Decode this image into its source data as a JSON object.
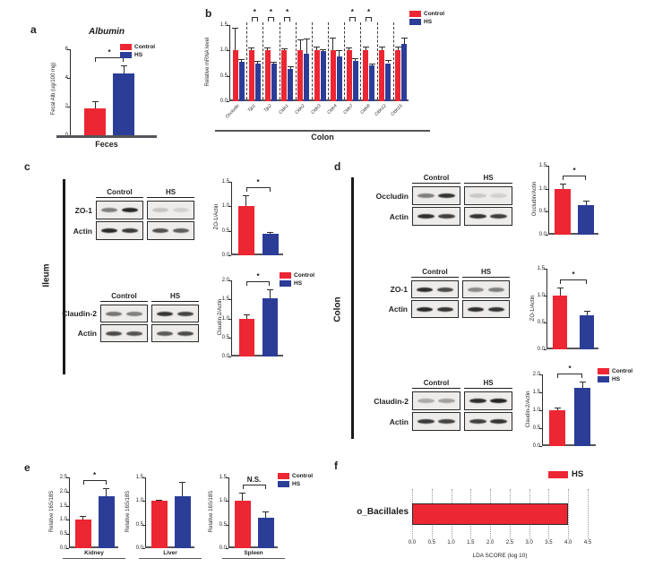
{
  "colors": {
    "control": "#ed2633",
    "hs": "#2c3d98",
    "lefse": "#ed2633",
    "axis": "#55565a"
  },
  "legend_labels": {
    "control": "Control",
    "hs": "HS"
  },
  "panels": {
    "a": {
      "label": "a"
    },
    "b": {
      "label": "b"
    },
    "c": {
      "label": "c",
      "tissue": "Ileum",
      "blots": [
        {
          "headers": [
            "Control",
            "HS"
          ],
          "rows": [
            {
              "label": "ZO-1",
              "lanes": [
                [
                  0.5,
                  0.9
                ],
                [
                  0.18,
                  0.12
                ]
              ]
            },
            {
              "label": "Actin",
              "lanes": [
                [
                  0.9,
                  0.82
                ],
                [
                  0.72,
                  0.66
                ]
              ]
            }
          ]
        },
        {
          "headers": [
            "Control",
            "HS"
          ],
          "rows": [
            {
              "label": "Claudin-2",
              "lanes": [
                [
                  0.55,
                  0.5
                ],
                [
                  0.85,
                  0.78
                ]
              ]
            },
            {
              "label": "Actin",
              "lanes": [
                [
                  0.75,
                  0.7
                ],
                [
                  0.68,
                  0.74
                ]
              ]
            }
          ]
        }
      ]
    },
    "d": {
      "label": "d",
      "tissue": "Colon",
      "blots": [
        {
          "headers": [
            "Control",
            "HS"
          ],
          "rows": [
            {
              "label": "Occludin",
              "lanes": [
                [
                  0.5,
                  0.85
                ],
                [
                  0.16,
                  0.12
                ]
              ]
            },
            {
              "label": "Actin",
              "lanes": [
                [
                  0.88,
                  0.8
                ],
                [
                  0.85,
                  0.8
                ]
              ]
            }
          ]
        },
        {
          "headers": [
            "Control",
            "HS"
          ],
          "rows": [
            {
              "label": "ZO-1",
              "lanes": [
                [
                  0.88,
                  0.75
                ],
                [
                  0.45,
                  0.5
                ]
              ]
            },
            {
              "label": "Actin",
              "lanes": [
                [
                  0.9,
                  0.85
                ],
                [
                  0.88,
                  0.85
                ]
              ]
            }
          ]
        },
        {
          "headers": [
            "Control",
            "HS"
          ],
          "rows": [
            {
              "label": "Claudin-2",
              "lanes": [
                [
                  0.3,
                  0.35
                ],
                [
                  0.88,
                  0.92
                ]
              ]
            },
            {
              "label": "Actin",
              "lanes": [
                [
                  0.82,
                  0.78
                ],
                [
                  0.8,
                  0.85
                ]
              ]
            }
          ]
        }
      ]
    },
    "e": {
      "label": "e"
    },
    "f": {
      "label": "f",
      "legend": "HS"
    }
  },
  "chart_data": [
    {
      "type": "bar",
      "title": "Albumin",
      "xlabel": "Feces",
      "ylabel": "Fecal Alb (ug/100 mg)",
      "ylim": [
        0,
        6
      ],
      "yticks": [
        "0",
        "2",
        "4",
        "6"
      ],
      "categories": [
        "Feces"
      ],
      "series": [
        {
          "name": "Control",
          "color": "control",
          "values": [
            1.9
          ],
          "errors": [
            0.5
          ]
        },
        {
          "name": "HS",
          "color": "hs",
          "values": [
            4.3
          ],
          "errors": [
            0.6
          ]
        }
      ],
      "sig": [
        {
          "group": 0,
          "label": "*"
        }
      ]
    },
    {
      "type": "bar",
      "xlabel": "Colon",
      "ylabel": "Relative mRNA level",
      "ylim": [
        0,
        1.5
      ],
      "yticks": [
        "0.0",
        "0.5",
        "1.0",
        "1.5"
      ],
      "categories": [
        "Occludin",
        "Tjp1",
        "Tjp2",
        "Cldn1",
        "Cldn2",
        "Cldn3",
        "Cldn4",
        "Cldn7",
        "Cldn8",
        "Cldn12",
        "Cldn15"
      ],
      "series": [
        {
          "name": "Control",
          "color": "control",
          "values": [
            1,
            1,
            1,
            1,
            1,
            1,
            1,
            1,
            1,
            1,
            1
          ],
          "errors": [
            0.45,
            0.06,
            0.06,
            0.05,
            0.22,
            0.07,
            0.25,
            0.06,
            0.08,
            0.07,
            0.07
          ]
        },
        {
          "name": "HS",
          "color": "hs",
          "values": [
            0.78,
            0.74,
            0.74,
            0.64,
            0.93,
            0.99,
            0.88,
            0.79,
            0.7,
            0.75,
            1.13
          ],
          "errors": [
            0.05,
            0.05,
            0.04,
            0.05,
            0.3,
            0.04,
            0.12,
            0.05,
            0.05,
            0.06,
            0.12
          ]
        }
      ],
      "sig": [
        {
          "group": 1,
          "label": "*"
        },
        {
          "group": 2,
          "label": "*"
        },
        {
          "group": 3,
          "label": "*"
        },
        {
          "group": 7,
          "label": "*"
        },
        {
          "group": 8,
          "label": "*"
        }
      ]
    },
    {
      "type": "bar",
      "ylabel": "ZO-1/Actin",
      "ylim": [
        0,
        1.5
      ],
      "yticks": [
        "0.0",
        "0.5",
        "1.0",
        "1.5"
      ],
      "categories": [
        "Ileum"
      ],
      "series": [
        {
          "name": "Control",
          "color": "control",
          "values": [
            1.0
          ],
          "errors": [
            0.22
          ]
        },
        {
          "name": "HS",
          "color": "hs",
          "values": [
            0.43
          ],
          "errors": [
            0.05
          ]
        }
      ],
      "sig": [
        {
          "group": 0,
          "label": "*"
        }
      ]
    },
    {
      "type": "bar",
      "ylabel": "Claudin-2/Actin",
      "ylim": [
        0,
        2
      ],
      "yticks": [
        "0.0",
        "0.5",
        "1.0",
        "1.5",
        "2.0"
      ],
      "categories": [
        "Ileum"
      ],
      "series": [
        {
          "name": "Control",
          "color": "control",
          "values": [
            1.0
          ],
          "errors": [
            0.1
          ]
        },
        {
          "name": "HS",
          "color": "hs",
          "values": [
            1.52
          ],
          "errors": [
            0.25
          ]
        }
      ],
      "sig": [
        {
          "group": 0,
          "label": "*"
        }
      ]
    },
    {
      "type": "bar",
      "ylabel": "Occludin/Actin",
      "ylim": [
        0,
        1.5
      ],
      "yticks": [
        "0.0",
        "0.5",
        "1.0",
        "1.5"
      ],
      "categories": [
        "Colon"
      ],
      "series": [
        {
          "name": "Control",
          "color": "control",
          "values": [
            1.0
          ],
          "errors": [
            0.12
          ]
        },
        {
          "name": "HS",
          "color": "hs",
          "values": [
            0.65
          ],
          "errors": [
            0.1
          ]
        }
      ],
      "sig": [
        {
          "group": 0,
          "label": "*"
        }
      ]
    },
    {
      "type": "bar",
      "ylabel": "ZO-1/Actin",
      "ylim": [
        0,
        1.5
      ],
      "yticks": [
        "0.0",
        "0.5",
        "1.0",
        "1.5"
      ],
      "categories": [
        "Colon"
      ],
      "series": [
        {
          "name": "Control",
          "color": "control",
          "values": [
            1.0
          ],
          "errors": [
            0.15
          ]
        },
        {
          "name": "HS",
          "color": "hs",
          "values": [
            0.63
          ],
          "errors": [
            0.08
          ]
        }
      ],
      "sig": [
        {
          "group": 0,
          "label": "*"
        }
      ]
    },
    {
      "type": "bar",
      "ylabel": "Claudin-2/Actin",
      "ylim": [
        0,
        2
      ],
      "yticks": [
        "0.0",
        "0.5",
        "1.0",
        "1.5",
        "2.0"
      ],
      "categories": [
        "Colon"
      ],
      "series": [
        {
          "name": "Control",
          "color": "control",
          "values": [
            1.0
          ],
          "errors": [
            0.07
          ]
        },
        {
          "name": "HS",
          "color": "hs",
          "values": [
            1.63
          ],
          "errors": [
            0.18
          ]
        }
      ],
      "sig": [
        {
          "group": 0,
          "label": "*"
        }
      ]
    },
    {
      "type": "bar",
      "xlabel": "Kidney",
      "ylabel": "Relative 16S/18S",
      "ylim": [
        0,
        2.5
      ],
      "yticks": [
        "0.0",
        "0.5",
        "1.0",
        "1.5",
        "2.0",
        "2.5"
      ],
      "categories": [
        "Kidney"
      ],
      "series": [
        {
          "name": "Control",
          "color": "control",
          "values": [
            1.0
          ],
          "errors": [
            0.15
          ]
        },
        {
          "name": "HS",
          "color": "hs",
          "values": [
            1.85
          ],
          "errors": [
            0.27
          ]
        }
      ],
      "sig": [
        {
          "group": 0,
          "label": "*"
        }
      ]
    },
    {
      "type": "bar",
      "xlabel": "Liver",
      "ylabel": "Relative 16S/18S",
      "ylim": [
        0,
        1.5
      ],
      "yticks": [
        "0.0",
        "0.5",
        "1.0",
        "1.5"
      ],
      "categories": [
        "Liver"
      ],
      "series": [
        {
          "name": "Control",
          "color": "control",
          "values": [
            1.0
          ],
          "errors": [
            0.03
          ]
        },
        {
          "name": "HS",
          "color": "hs",
          "values": [
            1.1
          ],
          "errors": [
            0.3
          ]
        }
      ]
    },
    {
      "type": "bar",
      "xlabel": "Spleen",
      "ylabel": "Relative 16S/18S",
      "ylim": [
        0,
        1.5
      ],
      "yticks": [
        "0.0",
        "0.5",
        "1.0",
        "1.5"
      ],
      "categories": [
        "Spleen"
      ],
      "series": [
        {
          "name": "Control",
          "color": "control",
          "values": [
            1.0
          ],
          "errors": [
            0.17
          ]
        },
        {
          "name": "HS",
          "color": "hs",
          "values": [
            0.65
          ],
          "errors": [
            0.12
          ]
        }
      ],
      "sig": [
        {
          "group": 0,
          "label": "N.S."
        }
      ]
    },
    {
      "type": "hbar",
      "xlabel": "LDA SCORE (log 10)",
      "categories": [
        "o_Bacillales"
      ],
      "values": [
        4.0
      ],
      "series_name": "HS",
      "xlim": [
        0,
        4.5
      ],
      "xticks": [
        "0.0",
        "0.5",
        "1.0",
        "1.5",
        "2.0",
        "2.5",
        "3.0",
        "3.5",
        "4.0",
        "4.5"
      ]
    }
  ]
}
